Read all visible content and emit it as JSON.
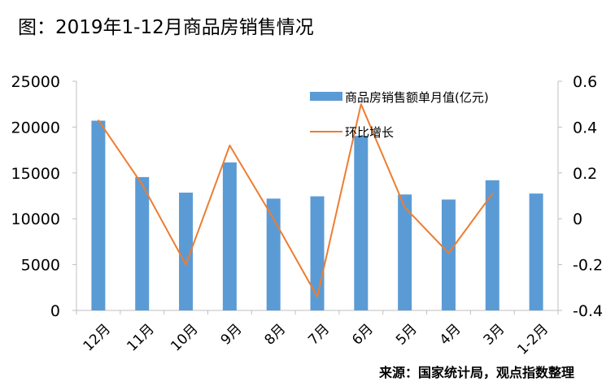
{
  "title": "图：2019年1-12月商品房销售情况",
  "source": "来源：国家统计局，观点指数整理",
  "colors": {
    "bar": "#5b9bd5",
    "line": "#ed7d31",
    "axis": "#bfbfbf"
  },
  "chart_data": {
    "type": "bar",
    "categories": [
      "12月",
      "11月",
      "10月",
      "9月",
      "8月",
      "7月",
      "6月",
      "5月",
      "4月",
      "3月",
      "1-2月"
    ],
    "series": [
      {
        "name": "商品房销售额单月值(亿元)",
        "type": "bar",
        "axis": "left",
        "values": [
          20700,
          14550,
          12850,
          16150,
          12200,
          12450,
          19050,
          12650,
          12100,
          14200,
          12750
        ]
      },
      {
        "name": "环比增长",
        "type": "line",
        "axis": "right",
        "values": [
          0.43,
          0.15,
          -0.2,
          0.32,
          0.0,
          -0.34,
          0.5,
          0.05,
          -0.15,
          0.11,
          null
        ]
      }
    ],
    "y_left": {
      "min": 0,
      "max": 25000,
      "ticks": [
        "0",
        "5000",
        "10000",
        "15000",
        "20000",
        "25000"
      ]
    },
    "y_right": {
      "min": -0.4,
      "max": 0.6,
      "ticks": [
        "-0.4",
        "-0.2",
        "0",
        "0.2",
        "0.4",
        "0.6"
      ]
    },
    "legend_position": "top-right",
    "grid": false
  }
}
